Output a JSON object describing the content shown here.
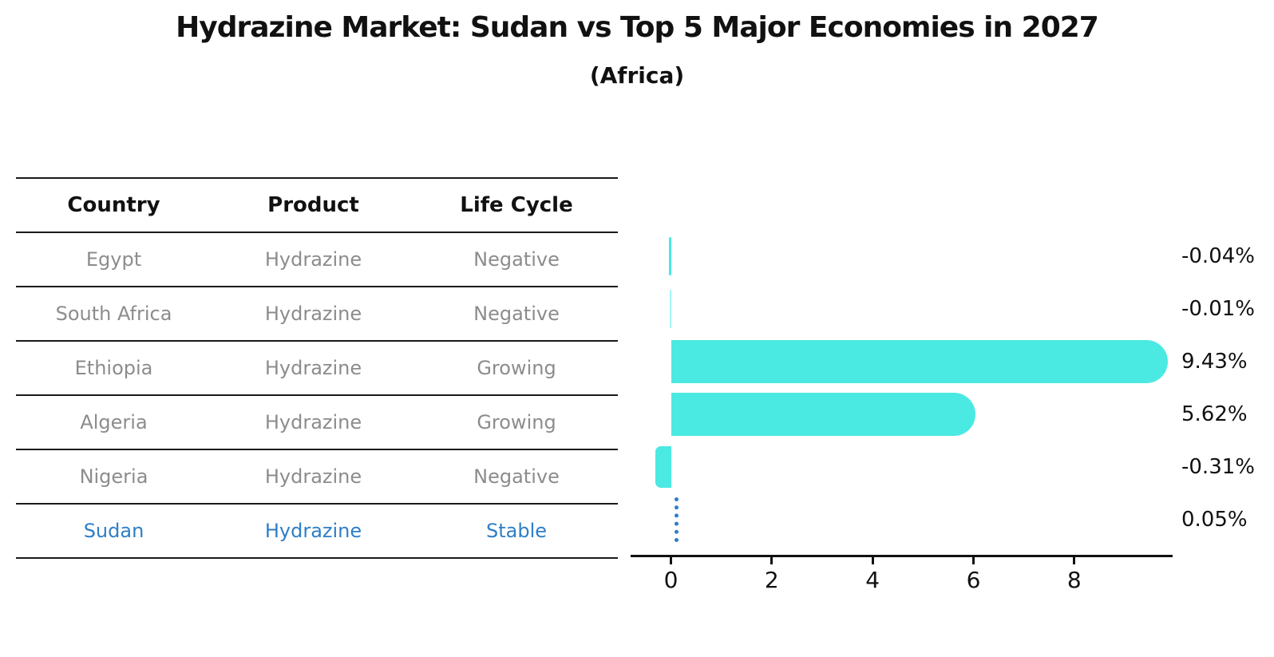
{
  "header": {
    "title": "Hydrazine Market: Sudan vs Top 5 Major Economies in 2027",
    "subtitle": "(Africa)"
  },
  "table": {
    "columns": [
      "Country",
      "Product",
      "Life Cycle"
    ],
    "rows": [
      {
        "country": "Egypt",
        "product": "Hydrazine",
        "life_cycle": "Negative"
      },
      {
        "country": "South Africa",
        "product": "Hydrazine",
        "life_cycle": "Negative"
      },
      {
        "country": "Ethiopia",
        "product": "Hydrazine",
        "life_cycle": "Growing"
      },
      {
        "country": "Algeria",
        "product": "Hydrazine",
        "life_cycle": "Growing"
      },
      {
        "country": "Nigeria",
        "product": "Hydrazine",
        "life_cycle": "Negative"
      },
      {
        "country": "Sudan",
        "product": "Hydrazine",
        "life_cycle": "Stable"
      }
    ],
    "highlight_row": 5
  },
  "chart_data": {
    "type": "bar",
    "orientation": "horizontal",
    "title": "Hydrazine Market: Sudan vs Top 5 Major Economies in 2027",
    "subtitle": "(Africa)",
    "categories": [
      "Egypt",
      "South Africa",
      "Ethiopia",
      "Algeria",
      "Nigeria",
      "Sudan"
    ],
    "values": [
      -0.04,
      -0.01,
      9.43,
      5.62,
      -0.31,
      0.05
    ],
    "value_labels": [
      "-0.04%",
      "-0.01%",
      "9.43%",
      "5.62%",
      "-0.31%",
      "0.05%"
    ],
    "xlabel": "",
    "ylabel": "",
    "xlim": [
      -0.8,
      9.95
    ],
    "xticks": [
      0,
      2,
      4,
      6,
      8
    ],
    "grid": false,
    "legend": "none",
    "highlight_index": 5,
    "highlight_style": "dotted-vertical-line"
  },
  "colors": {
    "bar": "#4AE9E2",
    "highlight": "#2E7EC6",
    "muted": "#8C8C8C",
    "line": "#1A1A1A"
  }
}
